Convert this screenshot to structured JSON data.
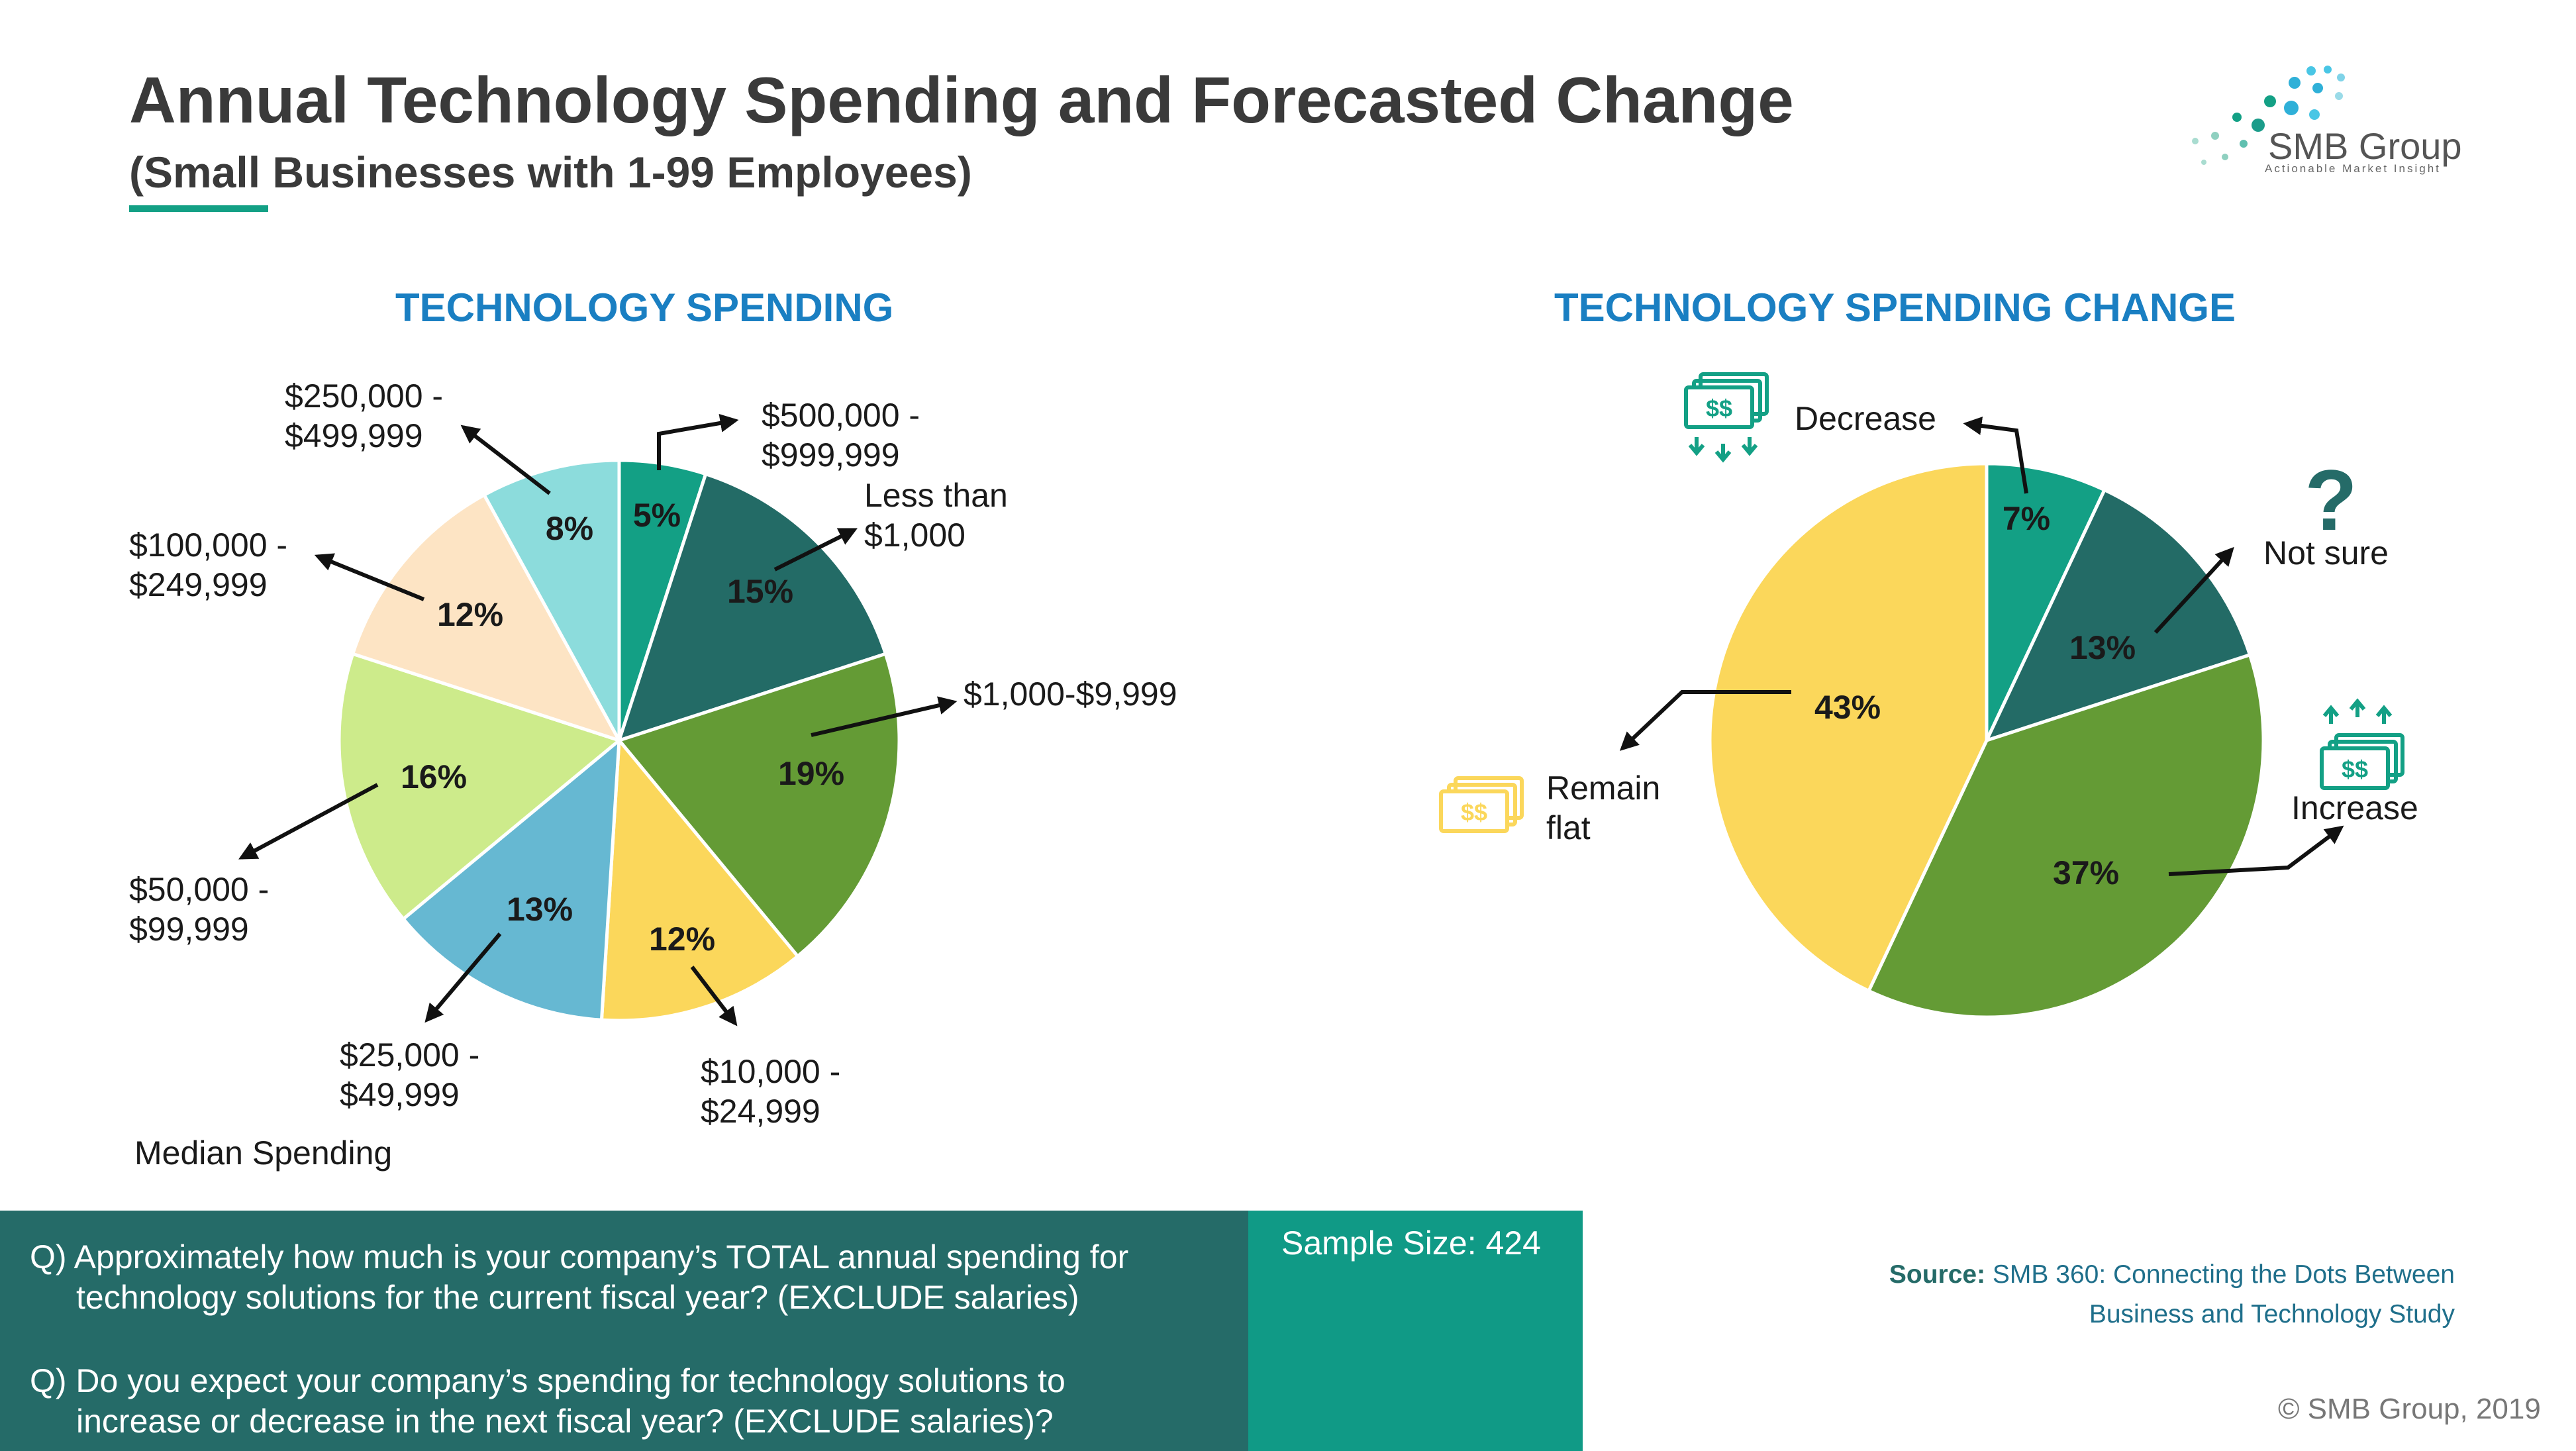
{
  "header": {
    "title": "Annual Technology Spending and Forecasted Change",
    "subtitle": "(Small Businesses with 1-99 Employees)"
  },
  "logo": {
    "name": "SMB Group",
    "tagline": "Actionable Market Insight"
  },
  "chart_data": [
    {
      "type": "pie",
      "title": "TECHNOLOGY SPENDING",
      "start_angle_deg": 0,
      "direction": "clockwise",
      "slices": [
        {
          "label": "$500,000 - $999,999",
          "value": 5,
          "display": "5%",
          "color": "#13a085"
        },
        {
          "label": "Less than $1,000",
          "value": 15,
          "display": "15%",
          "color": "#236b66"
        },
        {
          "label": "$1,000-$9,999",
          "value": 19,
          "display": "19%",
          "color": "#649b35"
        },
        {
          "label": "$10,000 - $24,999",
          "value": 12,
          "display": "12%",
          "color": "#fbd75b"
        },
        {
          "label": "$25,000 - $49,999",
          "value": 13,
          "display": "13%",
          "color": "#66b8d2"
        },
        {
          "label": "$50,000 - $99,999",
          "value": 16,
          "display": "16%",
          "color": "#cdeb8b"
        },
        {
          "label": "$100,000 - $249,999",
          "value": 12,
          "display": "12%",
          "color": "#fde4c4"
        },
        {
          "label": "$250,000 - $499,999",
          "value": 8,
          "display": "8%",
          "color": "#8cdcdc"
        }
      ],
      "annotation": "Median Spending"
    },
    {
      "type": "pie",
      "title": "TECHNOLOGY SPENDING CHANGE",
      "start_angle_deg": 0,
      "direction": "clockwise",
      "slices": [
        {
          "label": "Decrease",
          "value": 7,
          "display": "7%",
          "color": "#13a085"
        },
        {
          "label": "Not sure",
          "value": 13,
          "display": "13%",
          "color": "#236b66"
        },
        {
          "label": "Increase",
          "value": 37,
          "display": "37%",
          "color": "#649b35"
        },
        {
          "label": "Remain flat",
          "value": 43,
          "display": "43%",
          "color": "#fbd75b"
        }
      ]
    }
  ],
  "icons": {
    "decrease": "money-down-icon",
    "not_sure": "question-mark-icon",
    "increase": "money-up-icon",
    "remain_flat": "money-flat-icon",
    "money_glyph": "$$"
  },
  "footer": {
    "q1_line1": "Q) Approximately how much is your company’s TOTAL annual spending for",
    "q1_line2": "technology solutions for the current fiscal year? (EXCLUDE salaries)",
    "q2_line1": "Q) Do you expect your company’s spending for technology solutions to",
    "q2_line2": "increase or decrease in the next fiscal year? (EXCLUDE salaries)?",
    "sample_size": "Sample Size: 424",
    "source_label": "Source:",
    "source_line1": "SMB 360: Connecting the Dots Between",
    "source_line2": "Business and Technology Study",
    "copyright": "© SMB Group, 2019"
  },
  "colors": {
    "accent_green": "#13a085",
    "dark_teal": "#256b68",
    "chart_title_blue": "#1a7fc2"
  }
}
